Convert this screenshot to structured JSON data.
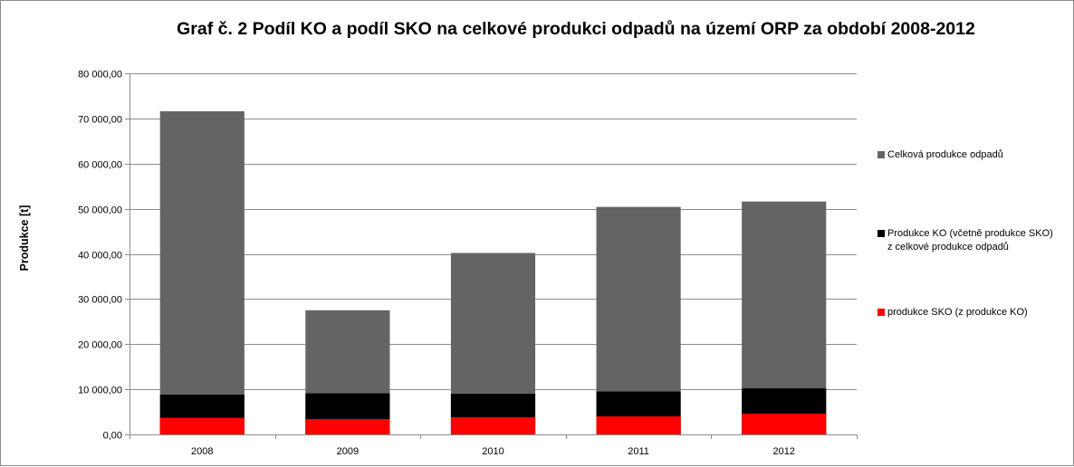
{
  "chart_data": {
    "type": "bar",
    "stacked": false,
    "overlapped": true,
    "title": "Graf č. 2 Podíl KO a podíl SKO na celkové produkci odpadů na území ORP za období 2008-2012",
    "ylabel": "Produkce [t]",
    "xlabel": "",
    "categories": [
      "2008",
      "2009",
      "2010",
      "2011",
      "2012"
    ],
    "ylim": [
      0,
      80000
    ],
    "y_ticks": [
      0,
      10000,
      20000,
      30000,
      40000,
      50000,
      60000,
      70000,
      80000
    ],
    "y_tick_labels": [
      "0,00",
      "10 000,00",
      "20 000,00",
      "30 000,00",
      "40 000,00",
      "50 000,00",
      "60 000,00",
      "70 000,00",
      "80 000,00"
    ],
    "grid": true,
    "legend_position": "right",
    "series": [
      {
        "name": "Celková produkce odpadů",
        "color": "#646464",
        "values": [
          71600,
          27500,
          40200,
          50400,
          51600
        ]
      },
      {
        "name": "Produkce KO (včetně produkce SKO) z celkové produkce odpadů",
        "color": "#000000",
        "values": [
          8800,
          9100,
          9000,
          9500,
          10200
        ]
      },
      {
        "name": "produkce SKO (z produkce KO)",
        "color": "#ff0000",
        "values": [
          3700,
          3400,
          3800,
          4000,
          4600
        ]
      }
    ]
  }
}
